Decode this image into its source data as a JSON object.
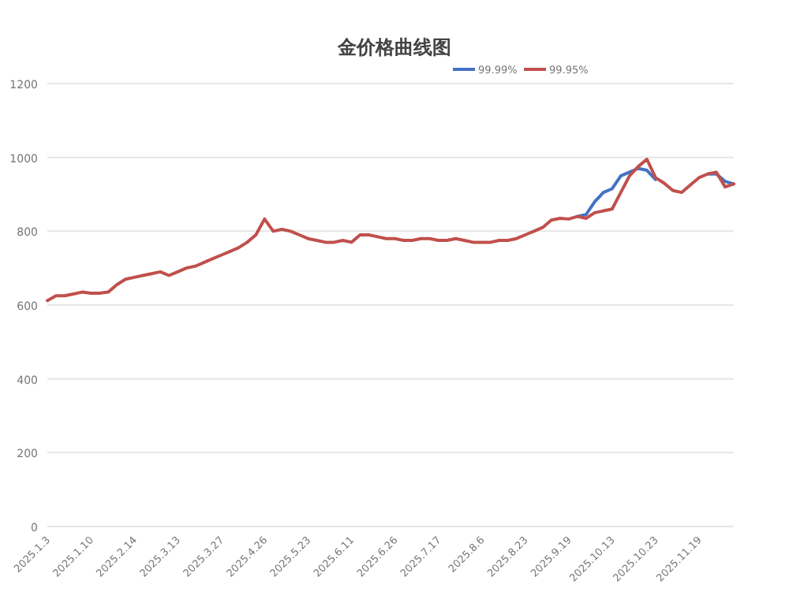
{
  "chart_data": {
    "type": "line",
    "title": "金价格曲线图",
    "categories": [
      "2025.1.3",
      null,
      null,
      null,
      null,
      "2025.1.10",
      null,
      null,
      null,
      null,
      "2025.2.14",
      null,
      null,
      null,
      null,
      "2025.3.13",
      null,
      null,
      null,
      null,
      "2025.3.27",
      null,
      null,
      null,
      null,
      "2025.4.26",
      null,
      null,
      null,
      null,
      "2025.5.23",
      null,
      null,
      null,
      null,
      "2025.6.11",
      null,
      null,
      null,
      null,
      "2025.6.26",
      null,
      null,
      null,
      null,
      "2025.7.17",
      null,
      null,
      null,
      null,
      "2025.8.6",
      null,
      null,
      null,
      null,
      "2025.8.23",
      null,
      null,
      null,
      null,
      "2025.9.19",
      null,
      null,
      null,
      null,
      "2025.10.13",
      null,
      null,
      null,
      null,
      "2025.10.23",
      null,
      null,
      null,
      null,
      "2025.11.19",
      null,
      null,
      null,
      null
    ],
    "series": [
      {
        "name": "99.99%",
        "color": "#4472c4",
        "values": [
          null,
          null,
          null,
          null,
          null,
          null,
          null,
          null,
          null,
          null,
          null,
          null,
          null,
          null,
          null,
          null,
          null,
          null,
          null,
          null,
          null,
          null,
          null,
          null,
          null,
          null,
          null,
          null,
          null,
          null,
          null,
          null,
          null,
          null,
          null,
          null,
          null,
          null,
          null,
          null,
          null,
          null,
          null,
          null,
          null,
          null,
          null,
          null,
          null,
          null,
          null,
          null,
          null,
          null,
          null,
          null,
          null,
          null,
          null,
          null,
          null,
          840,
          845,
          880,
          905,
          915,
          950,
          960,
          970,
          965,
          940,
          null,
          null,
          null,
          null,
          null,
          955,
          955,
          935,
          928
        ]
      },
      {
        "name": "99.95%",
        "color": "#c0504d",
        "values": [
          612,
          625,
          625,
          630,
          635,
          632,
          632,
          635,
          655,
          670,
          675,
          680,
          685,
          690,
          680,
          690,
          700,
          705,
          715,
          725,
          735,
          745,
          755,
          770,
          790,
          833,
          800,
          805,
          800,
          790,
          780,
          775,
          770,
          770,
          775,
          770,
          790,
          790,
          785,
          780,
          780,
          775,
          775,
          780,
          780,
          775,
          775,
          780,
          775,
          770,
          770,
          770,
          775,
          775,
          780,
          790,
          800,
          810,
          830,
          835,
          833,
          840,
          835,
          850,
          855,
          860,
          905,
          950,
          975,
          995,
          945,
          930,
          910,
          905,
          925,
          945,
          955,
          960,
          920,
          928
        ]
      }
    ],
    "ylim": [
      0,
      1200
    ],
    "yticks": [
      0,
      200,
      400,
      600,
      800,
      1000,
      1200
    ],
    "grid": "y",
    "legend": "top",
    "marker": "none",
    "line_style": "solid"
  }
}
